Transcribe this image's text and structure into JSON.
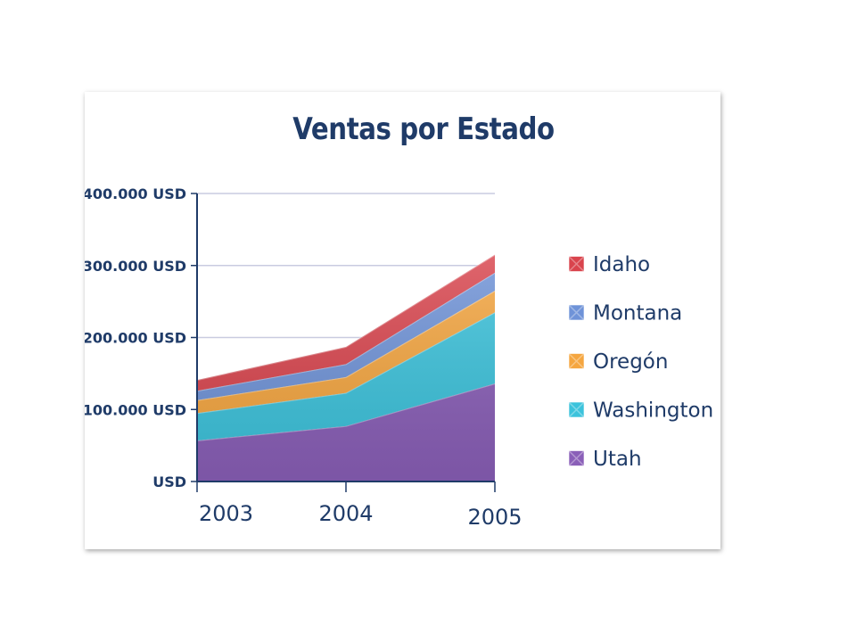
{
  "chart_data": {
    "type": "area",
    "stacked": true,
    "title": "Ventas por Estado",
    "xlabel": "",
    "ylabel": "",
    "categories": [
      "2003",
      "2004",
      "2005"
    ],
    "y_tick_labels": [
      "USD",
      "100.000 USD",
      "200.000 USD",
      "300.000 USD",
      "400.000 USD"
    ],
    "y_tick_values": [
      0,
      100000,
      200000,
      300000,
      400000
    ],
    "ylim": [
      0,
      400000
    ],
    "grid": true,
    "legend_position": "right",
    "series": [
      {
        "name": "Utah",
        "values": [
          57000,
          77000,
          136000
        ],
        "color": "#8a5fb8"
      },
      {
        "name": "Washington",
        "values": [
          38000,
          46000,
          99000
        ],
        "color": "#3cc3dc"
      },
      {
        "name": "Oregón",
        "values": [
          18000,
          22000,
          30000
        ],
        "color": "#f5a640"
      },
      {
        "name": "Montana",
        "values": [
          13000,
          18000,
          25000
        ],
        "color": "#6f93d8"
      },
      {
        "name": "Idaho",
        "values": [
          15000,
          24000,
          25000
        ],
        "color": "#d9444d"
      }
    ],
    "legend_order": [
      "Idaho",
      "Montana",
      "Oregón",
      "Washington",
      "Utah"
    ]
  }
}
